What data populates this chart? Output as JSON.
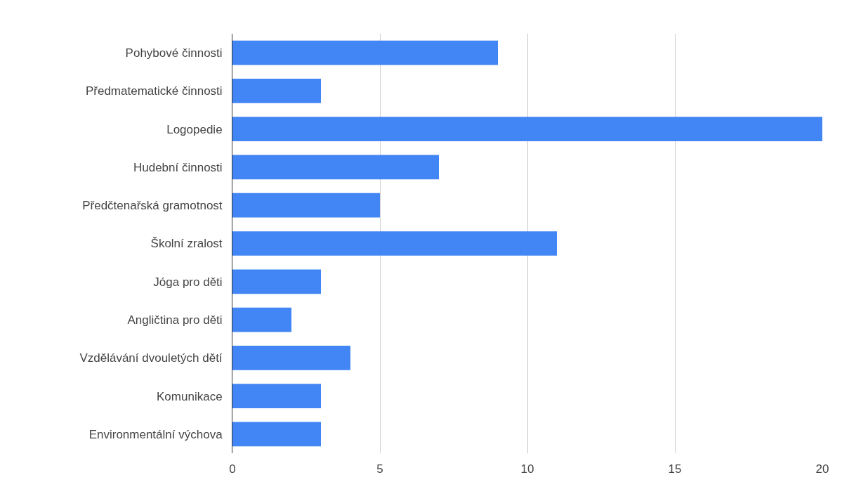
{
  "chart_data": {
    "type": "bar",
    "orientation": "horizontal",
    "categories": [
      "Pohybové činnosti",
      "Předmatematické činnosti",
      "Logopedie",
      "Hudební činnosti",
      "Předčtenařská gramotnost",
      "Školní zralost",
      "Jóga pro děti",
      "Angličtina pro děti",
      "Vzdělávání dvouletých dětí",
      "Komunikace",
      "Environmentální výchova"
    ],
    "values": [
      9,
      3,
      20,
      7,
      5,
      11,
      3,
      2,
      4,
      3,
      3
    ],
    "color": "#4285f4",
    "xlim": [
      0,
      20
    ],
    "xticks": [
      0,
      5,
      10,
      15,
      20
    ],
    "grid": "x"
  }
}
